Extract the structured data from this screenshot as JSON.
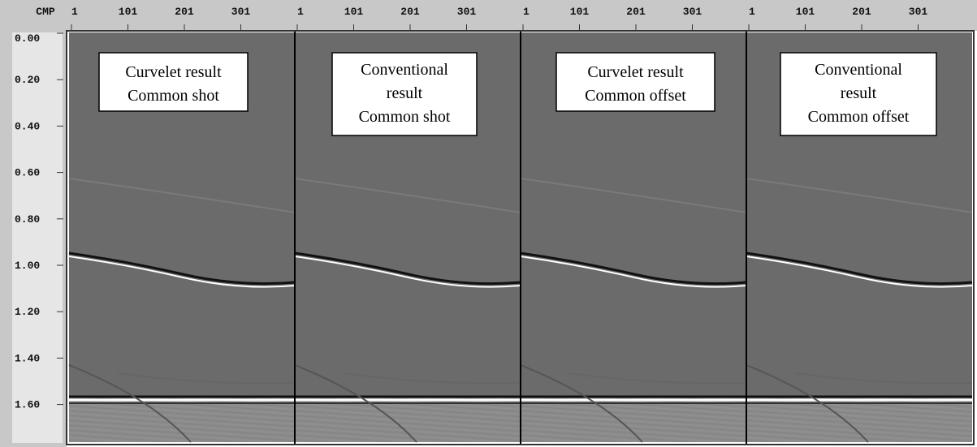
{
  "ruler": {
    "label": "CMP",
    "x_ticks": [
      "1",
      "101",
      "201",
      "301"
    ],
    "y_ticks": [
      "0.00",
      "0.20",
      "0.40",
      "0.60",
      "0.80",
      "1.00",
      "1.20",
      "1.40",
      "1.60"
    ]
  },
  "panels": [
    {
      "lines": [
        "Curvelet result",
        "Common shot"
      ]
    },
    {
      "lines": [
        "Conventional",
        "result",
        "Common shot"
      ]
    },
    {
      "lines": [
        "Curvelet result",
        "Common offset"
      ]
    },
    {
      "lines": [
        "Conventional",
        "result",
        "Common offset"
      ]
    }
  ]
}
